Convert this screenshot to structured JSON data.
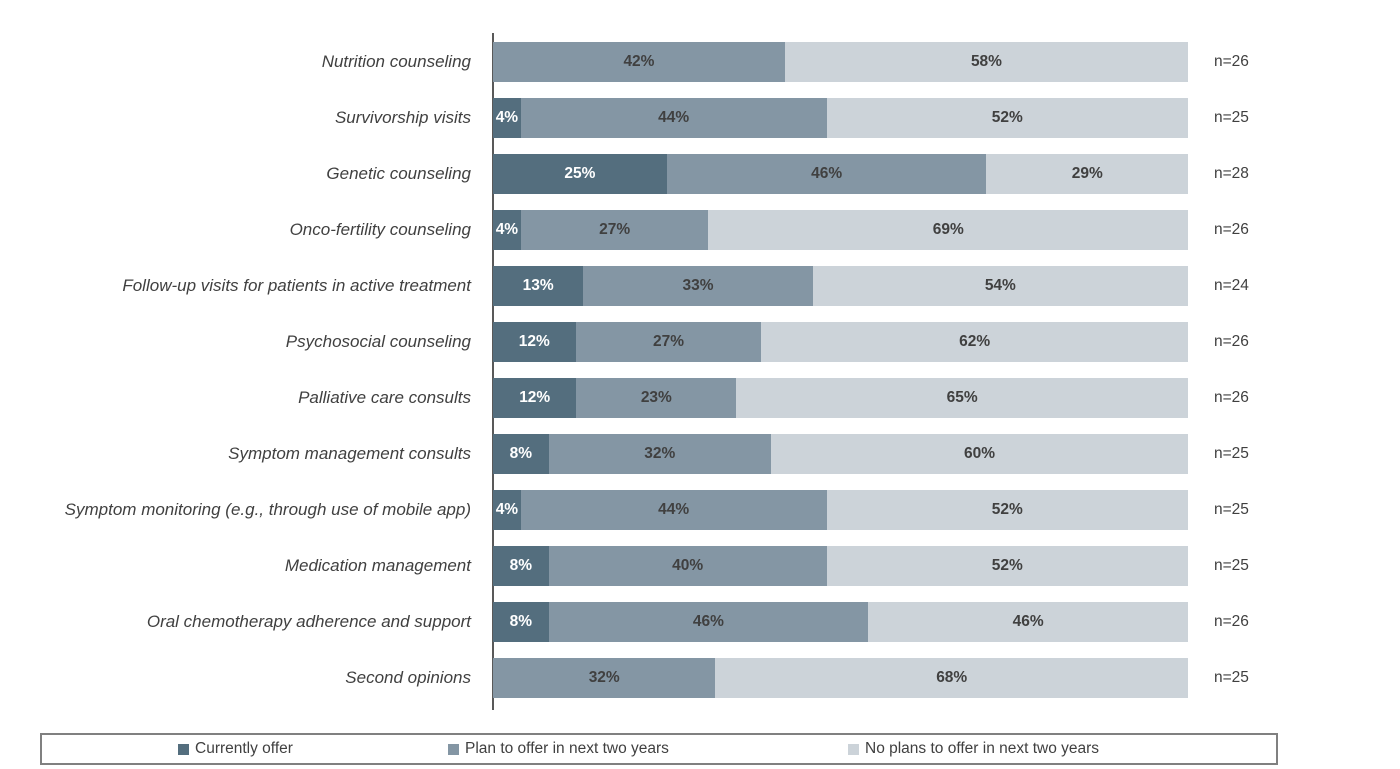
{
  "chart_data": {
    "type": "bar",
    "orientation": "horizontal",
    "stacked": true,
    "unit": "%",
    "xlim": [
      0,
      100
    ],
    "grid": false,
    "legend_position": "bottom",
    "series": [
      {
        "key": "currently-offer",
        "name": "Currently offer",
        "color": "#546e7e",
        "label_color": "#ffffff"
      },
      {
        "key": "plan-to-offer",
        "name": "Plan to offer in next two years",
        "color": "#8496a4",
        "label_color": "#404040"
      },
      {
        "key": "no-plans",
        "name": "No plans to offer in next two years",
        "color": "#ccd3d9",
        "label_color": "#404040"
      }
    ],
    "categories": [
      "Nutrition counseling",
      "Survivorship visits",
      "Genetic counseling",
      "Onco-fertility counseling",
      "Follow-up visits for patients in active treatment",
      "Psychosocial counseling",
      "Palliative care consults",
      "Symptom management consults",
      "Symptom monitoring (e.g., through use of mobile app)",
      "Medication management",
      "Oral chemotherapy adherence and support",
      "Second opinions"
    ],
    "rows": [
      {
        "label": "Nutrition counseling",
        "values": [
          0,
          42,
          58
        ],
        "n": "n=26"
      },
      {
        "label": "Survivorship visits",
        "values": [
          4,
          44,
          52
        ],
        "n": "n=25"
      },
      {
        "label": "Genetic counseling",
        "values": [
          25,
          46,
          29
        ],
        "n": "n=28"
      },
      {
        "label": "Onco-fertility counseling",
        "values": [
          4,
          27,
          69
        ],
        "n": "n=26"
      },
      {
        "label": "Follow-up visits for patients in active treatment",
        "values": [
          13,
          33,
          54
        ],
        "n": "n=24"
      },
      {
        "label": "Psychosocial counseling",
        "values": [
          12,
          27,
          62
        ],
        "n": "n=26"
      },
      {
        "label": "Palliative care consults",
        "values": [
          12,
          23,
          65
        ],
        "n": "n=26"
      },
      {
        "label": "Symptom management consults",
        "values": [
          8,
          32,
          60
        ],
        "n": "n=25"
      },
      {
        "label": "Symptom monitoring (e.g., through use of mobile app)",
        "values": [
          4,
          44,
          52
        ],
        "n": "n=25"
      },
      {
        "label": "Medication management",
        "values": [
          8,
          40,
          52
        ],
        "n": "n=25"
      },
      {
        "label": "Oral chemotherapy adherence and support",
        "values": [
          8,
          46,
          46
        ],
        "n": "n=26"
      },
      {
        "label": "Second opinions",
        "values": [
          0,
          32,
          68
        ],
        "n": "n=25"
      }
    ]
  },
  "styles": {
    "axis_color": "#595959",
    "legend_border_color": "#808080",
    "text_color": "#404040",
    "background": "#ffffff"
  }
}
